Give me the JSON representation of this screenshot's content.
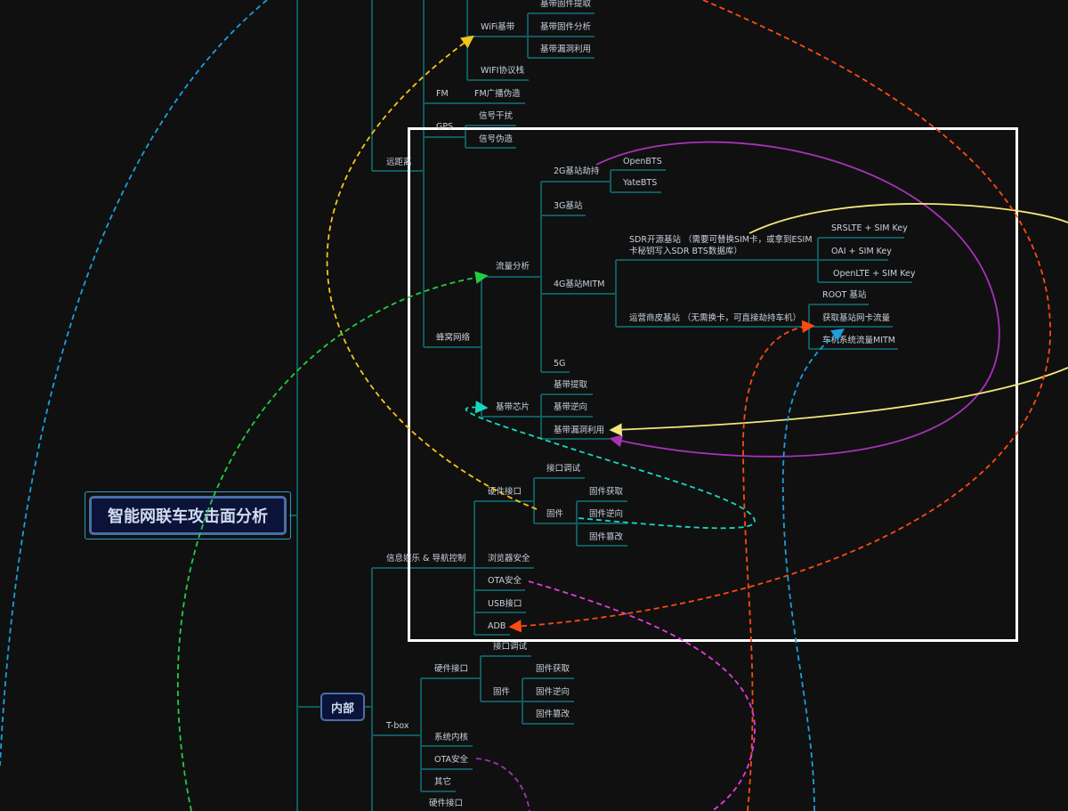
{
  "root": "智能网联车攻击面分析",
  "internal": "内部",
  "remote": {
    "label": "远距离",
    "wifi": {
      "label": "WiFi基带",
      "children": [
        "基带固件提取",
        "基带固件分析",
        "基带漏洞利用"
      ]
    },
    "wifi_stack": "WIFI协议栈",
    "fm": {
      "label": "FM",
      "children": [
        "FM广播伪造"
      ]
    },
    "gps": {
      "label": "GPS",
      "children": [
        "信号干扰",
        "信号伪造"
      ]
    },
    "cellular": {
      "label": "蜂窝网络",
      "traffic": {
        "label": "流量分析",
        "g2": {
          "label": "2G基站劫持",
          "children": [
            "OpenBTS",
            "YateBTS"
          ]
        },
        "g3": "3G基站",
        "g4": {
          "label": "4G基站MITM",
          "sdr": {
            "label_line1": "SDR开源基站 （需要可替换SIM卡，或拿到ESIM",
            "label_line2": "卡秘钥写入SDR BTS数据库）",
            "children": [
              "SRSLTE + SIM Key",
              "OAI + SIM Key",
              "OpenLTE + SIM Key"
            ]
          },
          "operator": {
            "label": "运营商皮基站 （无需换卡，可直接劫持车机）",
            "children": [
              "ROOT 基站",
              "获取基站网卡流量",
              "车机系统流量MITM"
            ]
          }
        },
        "g5": "5G"
      },
      "baseband": {
        "label": "基带芯片",
        "children": [
          "基带提取",
          "基带逆向",
          "基带漏洞利用"
        ]
      }
    }
  },
  "ivi": {
    "label": "信息娱乐 & 导航控制",
    "hw": {
      "label": "硬件接口",
      "debug": "接口调试",
      "firmware": {
        "label": "固件",
        "children": [
          "固件获取",
          "固件逆向",
          "固件篡改"
        ]
      }
    },
    "others": [
      "浏览器安全",
      "OTA安全",
      "USB接口",
      "ADB"
    ]
  },
  "tbox": {
    "label": "T-box",
    "hw": {
      "label": "硬件接口",
      "debug": "接口调试",
      "firmware": {
        "label": "固件",
        "children": [
          "固件获取",
          "固件逆向",
          "固件篡改"
        ]
      }
    },
    "others": [
      "系统内核",
      "OTA安全",
      "其它"
    ]
  },
  "next_partial": "硬件接口",
  "colors": {
    "background": "#101010",
    "branch": "#0f5b60",
    "root_fill": "#0c1338",
    "root_border": "#4a6fa8",
    "highlight_frame": "#ffffff",
    "link_yellow": "#f5c518",
    "link_green": "#22cc44",
    "link_cyan": "#19d6c0",
    "link_purple": "#a632b8",
    "link_light_yellow": "#f2e77a",
    "link_orange": "#ff4a12",
    "link_blue": "#1a9fe0",
    "link_magenta": "#e23de0"
  }
}
